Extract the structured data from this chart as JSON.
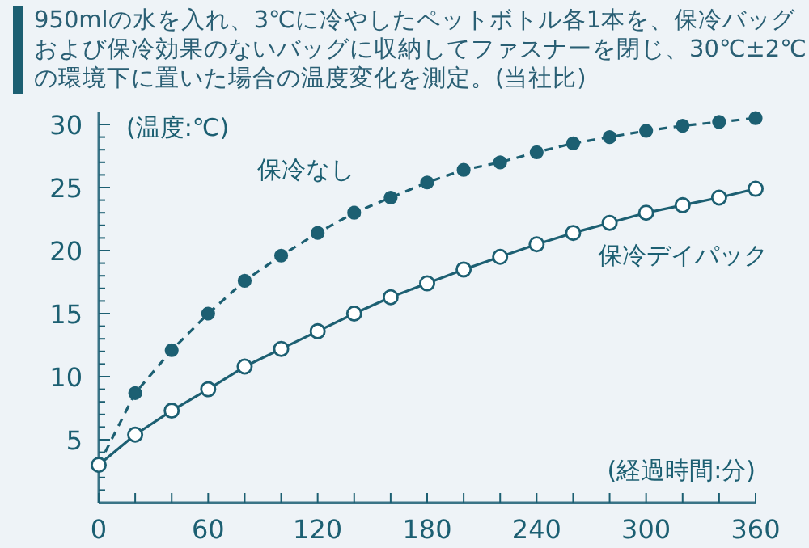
{
  "chart_data": {
    "type": "line",
    "title": "950mlの水を入れ、3℃に冷やしたペットボトル各1本を、保冷バッグおよび保冷効果のないバッグに収納してファスナーを閉じ、30℃±2℃の環境下に置いた場合の温度変化を測定。(当社比)",
    "ylabel": "(温度:℃)",
    "xlabel": "(経過時間:分)",
    "x": [
      0,
      20,
      40,
      60,
      80,
      100,
      120,
      140,
      160,
      180,
      200,
      220,
      240,
      260,
      280,
      300,
      320,
      340,
      360
    ],
    "series": [
      {
        "name": "保冷なし",
        "color": "#1c5f72",
        "line_style": "dashed",
        "marker": "circle",
        "values": [
          3,
          8.7,
          12.1,
          15.0,
          17.6,
          19.6,
          21.4,
          23.0,
          24.2,
          25.4,
          26.4,
          27.0,
          27.8,
          28.5,
          29.0,
          29.5,
          29.9,
          30.2,
          30.5
        ]
      },
      {
        "name": "保冷デイパック",
        "color": "#1c5f72",
        "line_style": "solid",
        "marker": "circle",
        "values": [
          3,
          5.4,
          7.3,
          9.0,
          10.8,
          12.2,
          13.6,
          15.0,
          16.3,
          17.4,
          18.5,
          19.5,
          20.5,
          21.4,
          22.2,
          23.0,
          23.6,
          24.2,
          24.9
        ]
      }
    ],
    "xlim": [
      0,
      360
    ],
    "ylim": [
      0,
      31
    ],
    "xticks": [
      0,
      {
        "value": 20,
        "label": null
      },
      {
        "value": 40,
        "label": null
      },
      60,
      {
        "value": 80,
        "label": null
      },
      {
        "value": 100,
        "label": null
      },
      120,
      {
        "value": 140,
        "label": null
      },
      {
        "value": 160,
        "label": null
      },
      180,
      {
        "value": 200,
        "label": null
      },
      {
        "value": 220,
        "label": null
      },
      240,
      {
        "value": 260,
        "label": null
      },
      {
        "value": 280,
        "label": null
      },
      300,
      {
        "value": 320,
        "label": null
      },
      {
        "value": 340,
        "label": null
      },
      360
    ],
    "yticks": [
      {
        "value": 1,
        "label": null
      },
      {
        "value": 2,
        "label": null
      },
      {
        "value": 3,
        "label": null
      },
      {
        "value": 4,
        "label": null
      },
      5,
      {
        "value": 6,
        "label": null
      },
      {
        "value": 7,
        "label": null
      },
      {
        "value": 8,
        "label": null
      },
      {
        "value": 9,
        "label": null
      },
      10,
      {
        "value": 11,
        "label": null
      },
      {
        "value": 12,
        "label": null
      },
      {
        "value": 13,
        "label": null
      },
      {
        "value": 14,
        "label": null
      },
      15,
      {
        "value": 16,
        "label": null
      },
      {
        "value": 17,
        "label": null
      },
      {
        "value": 18,
        "label": null
      },
      {
        "value": 19,
        "label": null
      },
      20,
      {
        "value": 21,
        "label": null
      },
      {
        "value": 22,
        "label": null
      },
      {
        "value": 23,
        "label": null
      },
      {
        "value": 24,
        "label": null
      },
      25,
      {
        "value": 26,
        "label": null
      },
      {
        "value": 27,
        "label": null
      },
      {
        "value": 28,
        "label": null
      },
      {
        "value": 29,
        "label": null
      },
      30
    ],
    "grid": false,
    "legend": false
  }
}
